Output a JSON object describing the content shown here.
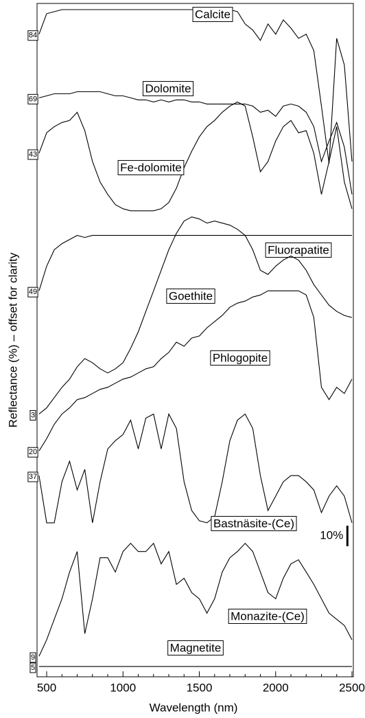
{
  "chart_data": {
    "type": "line",
    "xlabel": "Wavelength (nm)",
    "ylabel": "Reflectance (%) – offset for clarity",
    "xlim": [
      437,
      2509
    ],
    "ylim": [
      0,
      328
    ],
    "xticks": [
      500,
      1000,
      1500,
      2000,
      2500
    ],
    "xticks_minor": [
      600,
      700,
      800,
      900,
      1100,
      1200,
      1300,
      1400,
      1600,
      1700,
      1800,
      1900,
      2100,
      2200,
      2300,
      2400
    ],
    "scale_bar": {
      "label": "10%",
      "value": 10
    },
    "x": [
      450,
      500,
      550,
      600,
      650,
      700,
      750,
      800,
      850,
      900,
      950,
      1000,
      1050,
      1100,
      1150,
      1200,
      1250,
      1300,
      1350,
      1400,
      1450,
      1500,
      1550,
      1600,
      1650,
      1700,
      1750,
      1800,
      1850,
      1900,
      1950,
      2000,
      2050,
      2100,
      2150,
      2200,
      2250,
      2300,
      2350,
      2400,
      2450,
      2500
    ],
    "series": [
      {
        "name": "Calcite",
        "color": "#000000",
        "start_value": 84,
        "values": [
          313,
          323,
          324,
          325,
          325,
          325,
          325,
          325,
          325,
          325,
          325,
          325,
          325,
          325,
          325,
          325,
          325,
          325,
          325,
          325,
          325,
          325,
          325,
          325,
          325,
          325,
          324,
          318,
          315,
          310,
          318,
          313,
          320,
          316,
          311,
          313,
          305,
          278,
          250,
          311,
          298,
          251
        ]
      },
      {
        "name": "Dolomite",
        "color": "#000000",
        "start_value": 69,
        "values": [
          282,
          283,
          284,
          284,
          284,
          285,
          285,
          285,
          285,
          284,
          283,
          283,
          282,
          281,
          281,
          280,
          281,
          280,
          281,
          281,
          280,
          280,
          279,
          279,
          279,
          279,
          279,
          279,
          278,
          275,
          276,
          273,
          278,
          279,
          278,
          275,
          268,
          251,
          261,
          270,
          258,
          235
        ]
      },
      {
        "name": "Fe-dolomite",
        "color": "#000000",
        "start_value": 43,
        "values": [
          255,
          265,
          268,
          270,
          271,
          275,
          266,
          251,
          241,
          235,
          230,
          228,
          227,
          227,
          227,
          227,
          228,
          231,
          238,
          248,
          256,
          263,
          268,
          271,
          275,
          278,
          280,
          278,
          263,
          246,
          251,
          261,
          268,
          271,
          265,
          266,
          255,
          235,
          251,
          268,
          241,
          228
        ]
      },
      {
        "name": "Fluorapatite",
        "color": "#000000",
        "start_value": 49,
        "values": [
          188,
          200,
          208,
          211,
          213,
          215,
          214,
          215,
          215,
          215,
          215,
          215,
          215,
          215,
          215,
          215,
          215,
          215,
          215,
          215,
          215,
          215,
          215,
          215,
          215,
          215,
          215,
          215,
          215,
          215,
          215,
          215,
          215,
          215,
          215,
          215,
          215,
          215,
          215,
          215,
          215,
          215
        ]
      },
      {
        "name": "Goethite",
        "color": "#000000",
        "start_value": 3,
        "values": [
          128,
          131,
          136,
          141,
          145,
          151,
          155,
          153,
          150,
          148,
          150,
          153,
          160,
          168,
          178,
          188,
          198,
          208,
          216,
          222,
          224,
          223,
          221,
          222,
          221,
          220,
          218,
          215,
          208,
          198,
          196,
          200,
          203,
          205,
          203,
          198,
          191,
          186,
          181,
          178,
          176,
          175
        ]
      },
      {
        "name": "Phlogopite",
        "color": "#000000",
        "start_value": 20,
        "values": [
          110,
          116,
          123,
          128,
          131,
          135,
          136,
          138,
          140,
          141,
          143,
          145,
          146,
          148,
          150,
          151,
          155,
          158,
          163,
          161,
          165,
          166,
          170,
          173,
          176,
          180,
          182,
          183,
          185,
          186,
          188,
          188,
          188,
          188,
          188,
          186,
          175,
          141,
          135,
          141,
          138,
          145
        ]
      },
      {
        "name": "Bastnäsite-(Ce)",
        "color": "#000000",
        "start_value": 37,
        "values": [
          98,
          75,
          75,
          95,
          105,
          91,
          101,
          75,
          95,
          111,
          115,
          118,
          125,
          111,
          126,
          128,
          111,
          128,
          121,
          95,
          81,
          76,
          75,
          78,
          95,
          115,
          125,
          128,
          121,
          98,
          81,
          88,
          95,
          98,
          98,
          95,
          91,
          80,
          88,
          93,
          88,
          75
        ]
      },
      {
        "name": "Monazite-(Ce)",
        "color": "#000000",
        "start_value": 9,
        "values": [
          10,
          18,
          28,
          38,
          51,
          61,
          21,
          38,
          58,
          58,
          51,
          61,
          65,
          61,
          61,
          65,
          55,
          61,
          45,
          48,
          41,
          38,
          31,
          38,
          51,
          58,
          61,
          65,
          61,
          51,
          41,
          38,
          48,
          55,
          57,
          51,
          45,
          38,
          31,
          28,
          25,
          18
        ]
      },
      {
        "name": "Magnetite",
        "color": "#000000",
        "start_value": 5,
        "values": [
          5,
          5,
          5,
          5,
          5,
          5,
          5,
          5,
          5,
          5,
          5,
          5,
          5,
          5,
          5,
          5,
          5,
          5,
          5,
          5,
          5,
          5,
          5,
          5,
          5,
          5,
          5,
          5,
          5,
          5,
          5,
          5,
          5,
          5,
          5,
          5,
          5,
          5,
          5,
          5,
          5,
          5
        ]
      }
    ]
  }
}
